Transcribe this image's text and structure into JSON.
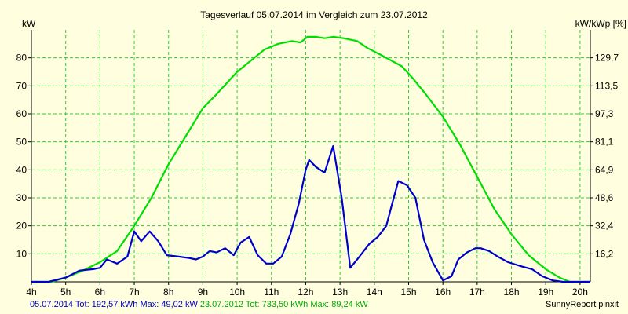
{
  "chart_data": {
    "type": "line",
    "title": "Tagesverlauf 05.07.2014 im Vergleich zum 23.07.2012",
    "ylabel_left": "kW",
    "ylabel_right": "kW/kWp [%]",
    "xlim": [
      4,
      20.3
    ],
    "ylim": [
      0,
      90
    ],
    "x_ticks": [
      "4h",
      "5h",
      "6h",
      "7h",
      "8h",
      "9h",
      "10h",
      "11h",
      "12h",
      "13h",
      "14h",
      "15h",
      "16h",
      "17h",
      "18h",
      "19h",
      "20h"
    ],
    "y_ticks_left": [
      "10",
      "20",
      "30",
      "40",
      "50",
      "60",
      "70",
      "80"
    ],
    "y_ticks_right": [
      "16,2",
      "32,4",
      "48,6",
      "64,9",
      "81,1",
      "97,3",
      "113,5",
      "129,7"
    ],
    "grid": true,
    "colors": {
      "background": "#ffffe0",
      "grid": "#33cc33",
      "axis": "#000000"
    },
    "series": [
      {
        "name": "05.07.2014",
        "color": "#0000cc",
        "points": [
          [
            4,
            0
          ],
          [
            4.5,
            0
          ],
          [
            5,
            1.5
          ],
          [
            5.4,
            4
          ],
          [
            5.8,
            4.5
          ],
          [
            6,
            5
          ],
          [
            6.2,
            8
          ],
          [
            6.5,
            6.5
          ],
          [
            6.8,
            9
          ],
          [
            7,
            18
          ],
          [
            7.2,
            14.5
          ],
          [
            7.45,
            18
          ],
          [
            7.7,
            14.5
          ],
          [
            7.95,
            9.5
          ],
          [
            8.3,
            9
          ],
          [
            8.6,
            8.5
          ],
          [
            8.8,
            8
          ],
          [
            9,
            9
          ],
          [
            9.2,
            11
          ],
          [
            9.4,
            10.5
          ],
          [
            9.65,
            12
          ],
          [
            9.9,
            9.5
          ],
          [
            10.1,
            14
          ],
          [
            10.35,
            16
          ],
          [
            10.6,
            9.5
          ],
          [
            10.85,
            6.5
          ],
          [
            11.05,
            6.5
          ],
          [
            11.3,
            9
          ],
          [
            11.55,
            17
          ],
          [
            11.8,
            28
          ],
          [
            12,
            40
          ],
          [
            12.1,
            43.5
          ],
          [
            12.3,
            41
          ],
          [
            12.55,
            39
          ],
          [
            12.8,
            48.5
          ],
          [
            13.05,
            30
          ],
          [
            13.3,
            5
          ],
          [
            13.5,
            8
          ],
          [
            13.85,
            13.5
          ],
          [
            14.1,
            16
          ],
          [
            14.35,
            20
          ],
          [
            14.5,
            27
          ],
          [
            14.7,
            36
          ],
          [
            14.95,
            34.5
          ],
          [
            15.2,
            30
          ],
          [
            15.45,
            15
          ],
          [
            15.7,
            7
          ],
          [
            16,
            0.5
          ],
          [
            16.25,
            2
          ],
          [
            16.45,
            8
          ],
          [
            16.7,
            10.5
          ],
          [
            16.95,
            12
          ],
          [
            17.1,
            12
          ],
          [
            17.35,
            11
          ],
          [
            17.6,
            9
          ],
          [
            17.9,
            7
          ],
          [
            18.3,
            5.5
          ],
          [
            18.6,
            4.5
          ],
          [
            18.9,
            2
          ],
          [
            19.2,
            0.5
          ],
          [
            19.5,
            0
          ],
          [
            20.3,
            0
          ]
        ]
      },
      {
        "name": "23.07.2012",
        "color": "#00dd00",
        "points": [
          [
            4,
            0
          ],
          [
            4.6,
            0
          ],
          [
            5,
            1.5
          ],
          [
            5.5,
            4
          ],
          [
            6,
            7
          ],
          [
            6.5,
            11
          ],
          [
            7,
            20
          ],
          [
            7.5,
            30
          ],
          [
            8,
            42
          ],
          [
            8.5,
            52
          ],
          [
            9,
            62
          ],
          [
            9.4,
            67
          ],
          [
            10,
            75
          ],
          [
            10.5,
            80
          ],
          [
            10.8,
            83
          ],
          [
            11.2,
            85
          ],
          [
            11.6,
            86
          ],
          [
            11.85,
            85.5
          ],
          [
            12.05,
            87.5
          ],
          [
            12.3,
            87.5
          ],
          [
            12.55,
            87
          ],
          [
            12.8,
            87.5
          ],
          [
            13.1,
            87
          ],
          [
            13.5,
            86
          ],
          [
            13.8,
            83.5
          ],
          [
            14.2,
            81
          ],
          [
            14.8,
            77
          ],
          [
            15.1,
            73
          ],
          [
            15.5,
            67
          ],
          [
            16,
            59
          ],
          [
            16.5,
            49
          ],
          [
            17,
            37.5
          ],
          [
            17.5,
            26
          ],
          [
            18,
            17
          ],
          [
            18.5,
            9.5
          ],
          [
            19,
            4.5
          ],
          [
            19.4,
            1.5
          ],
          [
            19.7,
            0
          ],
          [
            20.3,
            0
          ]
        ]
      }
    ]
  },
  "footer": {
    "series1_name": "05.07.2014",
    "series1_stats": "Tot: 192,57 kWh Max: 49,02 kW",
    "series2_name": "23.07.2012",
    "series2_stats": "Tot: 733,50 kWh Max: 89,24 kW",
    "credit": "SunnyReport pinxit"
  }
}
